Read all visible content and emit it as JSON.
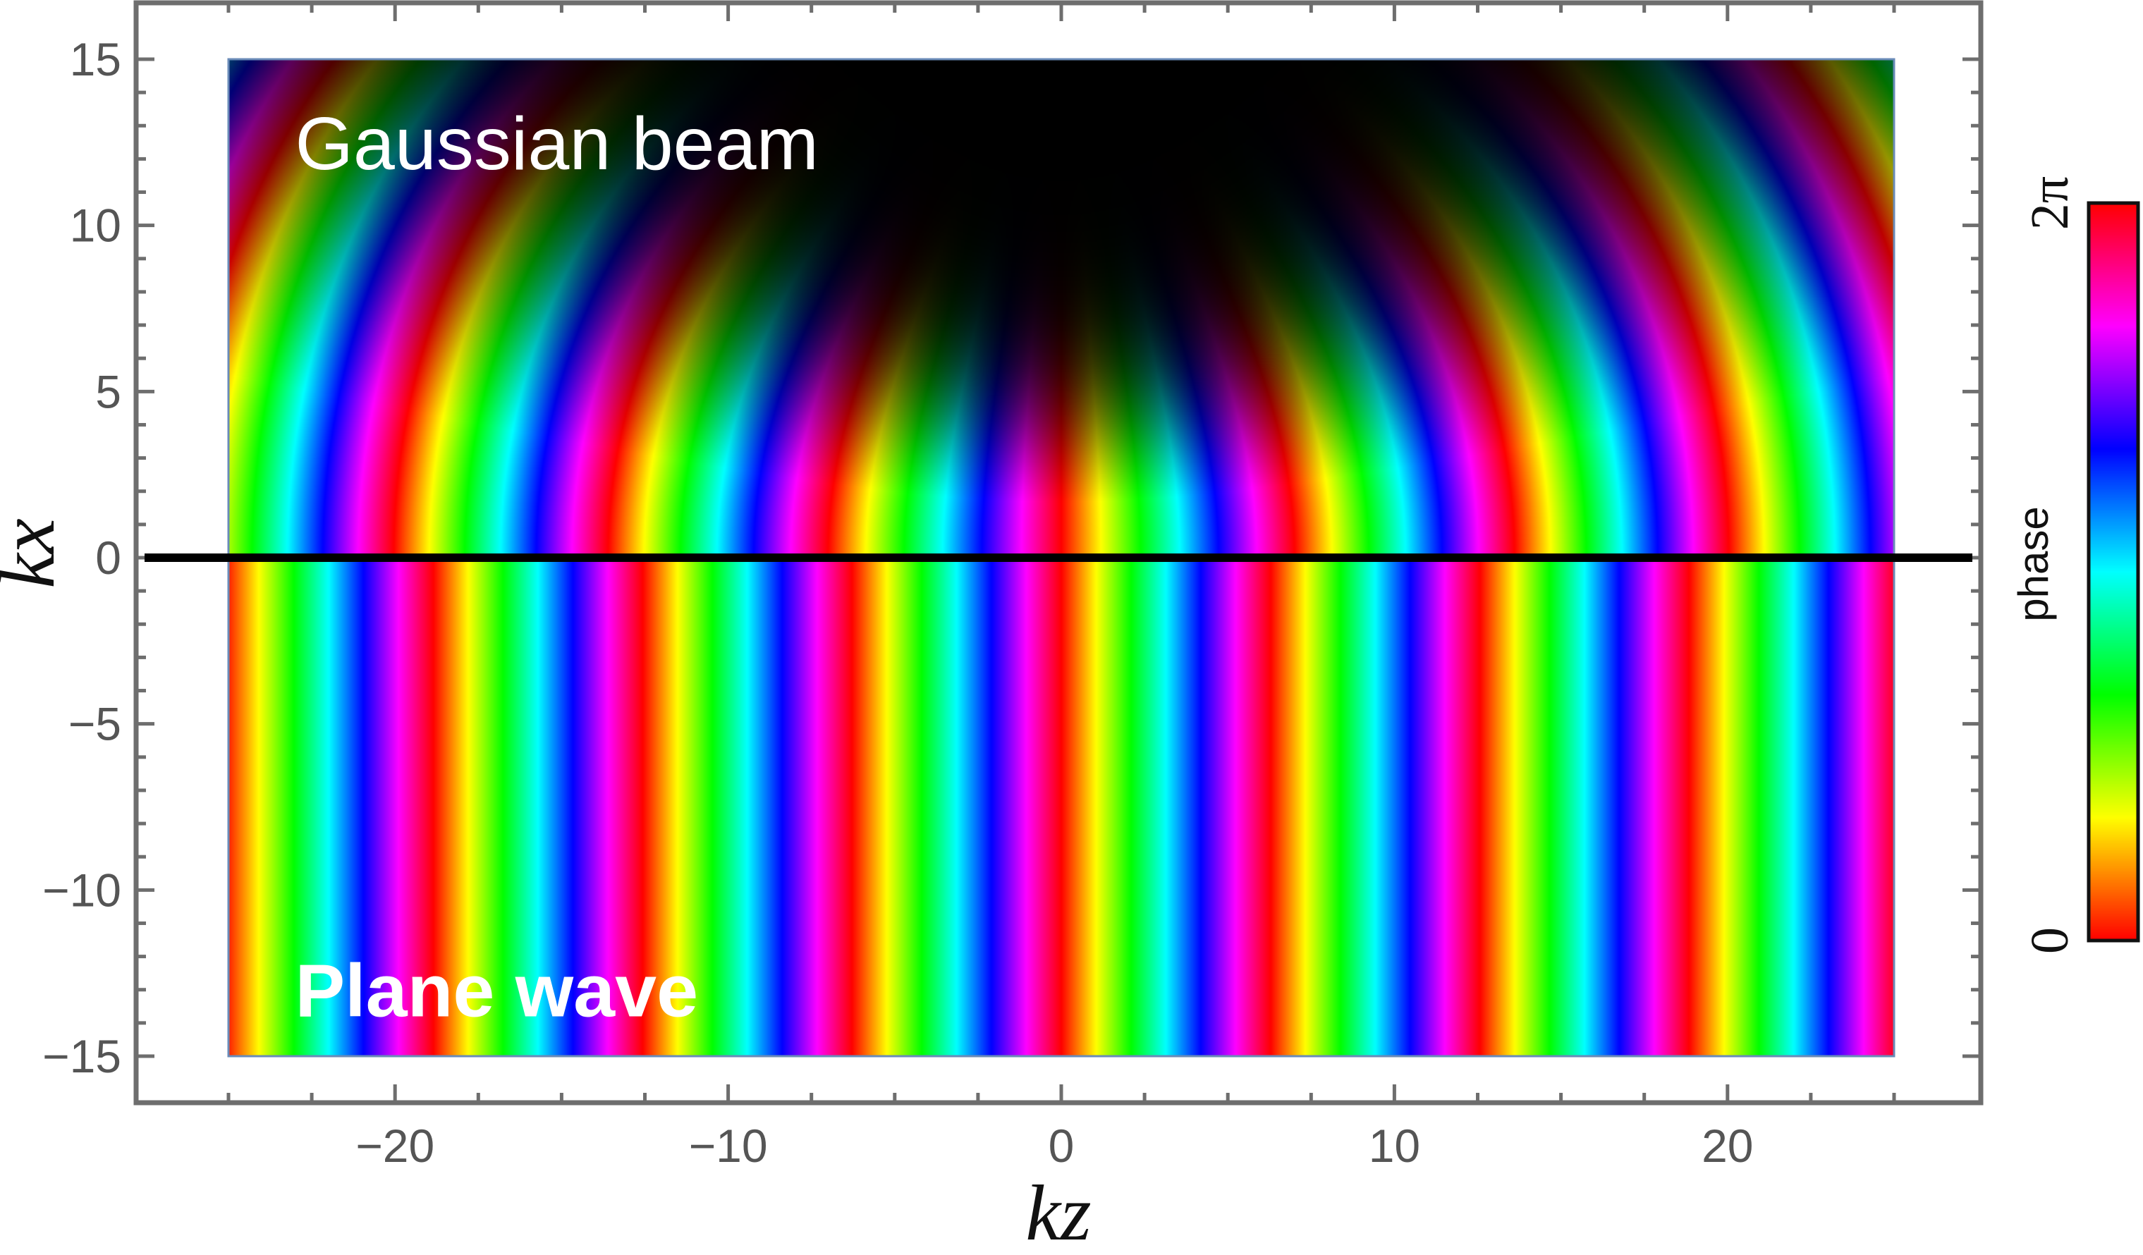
{
  "chart_data": {
    "type": "heatmap",
    "title": "",
    "xlabel": "kz",
    "ylabel": "kx",
    "xlim": [
      -27.5,
      27.5
    ],
    "ylim": [
      -16.5,
      16.5
    ],
    "data_extent": {
      "x": [
        -25,
        25
      ],
      "y": [
        -15,
        15
      ]
    },
    "x_ticks": [
      -20,
      -10,
      0,
      10,
      20
    ],
    "x_tick_labels": [
      "−20",
      "−10",
      "0",
      "10",
      "20"
    ],
    "y_ticks": [
      15,
      10,
      5,
      0,
      -5,
      -10,
      -15
    ],
    "y_tick_labels": [
      "15",
      "10",
      "5",
      "0",
      "−5",
      "−10",
      "−15"
    ],
    "grid": false,
    "field_description_visible": {
      "lower_half": "Plane wave phase exp(i kz) for kx < 0",
      "upper_half": "Gaussian beam phase for kx > 0, intensity fading with |kx|"
    },
    "gaussian_beam_model": {
      "zR": 8,
      "w0": 4.5
    },
    "divider_line": {
      "y": 0,
      "color": "#000000"
    },
    "annotations": [
      {
        "name": "gaussian-beam-label",
        "text": "Gaussian beam",
        "x": -23,
        "y": 12.5
      },
      {
        "name": "plane-wave-label",
        "text": "Plane wave",
        "x": -23,
        "y": -13
      }
    ],
    "colorbar": {
      "label": "phase",
      "min_label": "0",
      "max_label": "2π",
      "range": [
        0,
        6.283185307
      ],
      "colormap": "hue"
    }
  }
}
